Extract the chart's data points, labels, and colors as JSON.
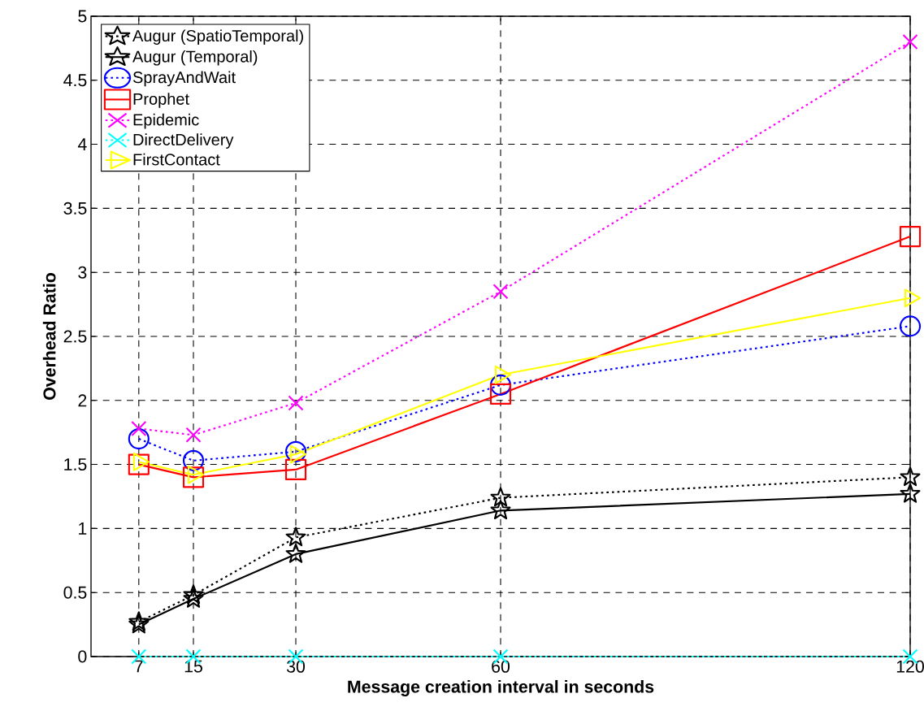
{
  "chart_data": {
    "type": "line",
    "xlabel": "Message creation interval in seconds",
    "ylabel": "Overhead Ratio",
    "x": [
      7,
      15,
      30,
      60,
      120
    ],
    "series": [
      {
        "name": "Augur (SpatioTemporal)",
        "color": "#000000",
        "marker": "star",
        "line_style": "dotted",
        "values": [
          0.27,
          0.48,
          0.93,
          1.24,
          1.4
        ]
      },
      {
        "name": "Augur (Temporal)",
        "color": "#000000",
        "marker": "star",
        "line_style": "solid",
        "values": [
          0.25,
          0.45,
          0.8,
          1.14,
          1.27
        ]
      },
      {
        "name": "SprayAndWait",
        "color": "#0000ff",
        "marker": "circle",
        "line_style": "dotted",
        "values": [
          1.7,
          1.53,
          1.6,
          2.12,
          2.58
        ]
      },
      {
        "name": "Prophet",
        "color": "#ff0000",
        "marker": "square",
        "line_style": "solid",
        "values": [
          1.5,
          1.4,
          1.46,
          2.05,
          3.28
        ]
      },
      {
        "name": "Epidemic",
        "color": "#ff00ff",
        "marker": "cross",
        "line_style": "dotted",
        "values": [
          1.78,
          1.73,
          1.98,
          2.85,
          4.8
        ]
      },
      {
        "name": "DirectDelivery",
        "color": "#00ffff",
        "marker": "cross",
        "line_style": "dotted",
        "values": [
          0,
          0,
          0,
          0,
          0
        ]
      },
      {
        "name": "FirstContact",
        "color": "#ffff00",
        "marker": "triangle",
        "line_style": "solid",
        "values": [
          1.52,
          1.42,
          1.58,
          2.2,
          2.8
        ]
      }
    ],
    "xlim": [
      0,
      120
    ],
    "xticks": [
      7,
      15,
      30,
      60,
      120
    ],
    "ylim": [
      0,
      5
    ],
    "yticks": [
      0,
      0.5,
      1,
      1.5,
      2,
      2.5,
      3,
      3.5,
      4,
      4.5,
      5
    ],
    "grid": true,
    "legend": "top left"
  }
}
